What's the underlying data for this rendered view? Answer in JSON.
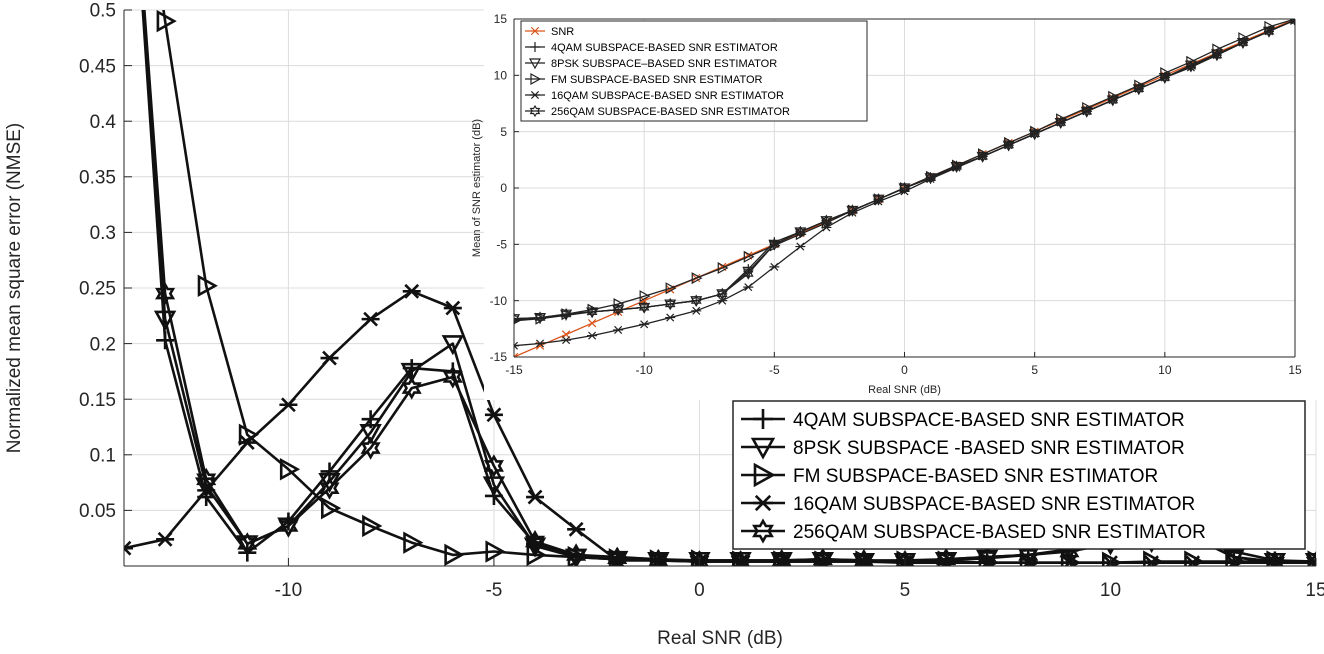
{
  "chart_data": [
    {
      "type": "line",
      "name": "main",
      "title": "",
      "xlabel": "Real SNR (dB)",
      "ylabel": "Normalized mean square error (NMSE)",
      "xlim": [
        -14,
        15
      ],
      "ylim": [
        0,
        0.5
      ],
      "xticks": [
        -10,
        -5,
        0,
        5,
        10,
        15
      ],
      "yticks": [
        0.05,
        0.1,
        0.15,
        0.2,
        0.25,
        0.3,
        0.35,
        0.4,
        0.45,
        0.5
      ],
      "xtick_labels": [
        "-10",
        "-5",
        "0",
        "5",
        "10",
        "15"
      ],
      "ytick_labels": [
        "0.05",
        "0.1",
        "0.15",
        "0.2",
        "0.25",
        "0.3",
        "0.35",
        "0.4",
        "0.45",
        "0.5"
      ],
      "grid": true,
      "legend_position": "bottom-right",
      "x": [
        -14,
        -13,
        -12,
        -11,
        -10,
        -9,
        -8,
        -7,
        -6,
        -5,
        -4,
        -3,
        -2,
        -1,
        0,
        1,
        2,
        3,
        4,
        5,
        6,
        7,
        8,
        9,
        10,
        11,
        12,
        13,
        14,
        15
      ],
      "series": [
        {
          "name": "4QAM SUBSPACE-BASED SNR ESTIMATOR",
          "marker": "plus",
          "values": [
            0.75,
            0.203,
            0.062,
            0.012,
            0.04,
            0.085,
            0.132,
            0.178,
            0.175,
            0.063,
            0.02,
            0.01,
            0.008,
            0.006,
            0.005,
            0.005,
            0.005,
            0.006,
            0.005,
            0.005,
            0.006,
            0.008,
            0.01,
            0.014,
            0.02,
            0.024,
            0.025,
            0.013,
            0.005,
            0.004
          ]
        },
        {
          "name": "8PSK SUBSPACE -BASED SNR ESTIMATOR",
          "marker": "triangle-down",
          "values": [
            0.75,
            0.222,
            0.072,
            0.02,
            0.036,
            0.076,
            0.12,
            0.175,
            0.2,
            0.073,
            0.018,
            0.008,
            0.006,
            0.005,
            0.005,
            0.005,
            0.005,
            0.005,
            0.004,
            0.004,
            0.005,
            0.007,
            0.01,
            0.015,
            0.022,
            0.026,
            0.026,
            0.008,
            0.004,
            0.004
          ]
        },
        {
          "name": "FM SUBSPACE-BASED SNR ESTIMATOR",
          "marker": "triangle-right",
          "values": [
            0.75,
            0.49,
            0.252,
            0.118,
            0.087,
            0.052,
            0.036,
            0.021,
            0.01,
            0.013,
            0.01,
            0.008,
            0.006,
            0.005,
            0.005,
            0.004,
            0.004,
            0.004,
            0.004,
            0.004,
            0.004,
            0.003,
            0.003,
            0.003,
            0.003,
            0.004,
            0.004,
            0.004,
            0.004,
            0.004
          ]
        },
        {
          "name": "16QAM SUBSPACE-BASED SNR ESTIMATOR",
          "marker": "asterisk",
          "values": [
            0.016,
            0.024,
            0.068,
            0.111,
            0.145,
            0.187,
            0.222,
            0.247,
            0.232,
            0.136,
            0.062,
            0.033,
            0.005,
            0.005,
            0.004,
            0.004,
            0.004,
            0.004,
            0.004,
            0.003,
            0.003,
            0.003,
            0.003,
            0.003,
            0.003,
            0.003,
            0.003,
            0.003,
            0.003,
            0.003
          ]
        },
        {
          "name": "256QAM SUBSPACE-BASED SNR ESTIMATOR",
          "marker": "hexagram",
          "values": [
            0.75,
            0.245,
            0.078,
            0.02,
            0.036,
            0.07,
            0.106,
            0.16,
            0.17,
            0.09,
            0.022,
            0.01,
            0.007,
            0.005,
            0.004,
            0.004,
            0.005,
            0.006,
            0.005,
            0.004,
            0.006,
            0.008,
            0.01,
            0.013,
            0.02,
            0.022,
            0.026,
            0.008,
            0.003,
            0.003
          ]
        }
      ]
    },
    {
      "type": "line",
      "name": "inset",
      "title": "",
      "xlabel": "Real SNR (dB)",
      "ylabel": "Mean of SNR estimator (dB)",
      "xlim": [
        -15,
        15
      ],
      "ylim": [
        -15,
        15
      ],
      "xticks": [
        -15,
        -10,
        -5,
        0,
        5,
        10,
        15
      ],
      "yticks": [
        -15,
        -10,
        -5,
        0,
        5,
        10,
        15
      ],
      "xtick_labels": [
        "-15",
        "-10",
        "-5",
        "0",
        "5",
        "10",
        "15"
      ],
      "ytick_labels": [
        "-15",
        "-10",
        "-5",
        "0",
        "5",
        "10",
        "15"
      ],
      "grid": true,
      "legend_position": "top-left",
      "x": [
        -15,
        -14,
        -13,
        -12,
        -11,
        -10,
        -9,
        -8,
        -7,
        -6,
        -5,
        -4,
        -3,
        -2,
        -1,
        0,
        1,
        2,
        3,
        4,
        5,
        6,
        7,
        8,
        9,
        10,
        11,
        12,
        13,
        14,
        15
      ],
      "series": [
        {
          "name": "SNR",
          "marker": "x",
          "color": "#d95319",
          "values": [
            -15,
            -14,
            -13,
            -12,
            -11,
            -10,
            -9,
            -8,
            -7,
            -6,
            -5,
            -4,
            -3,
            -2,
            -1,
            0,
            1,
            2,
            3,
            4,
            5,
            6,
            7,
            8,
            9,
            10,
            11,
            12,
            13,
            14,
            15
          ]
        },
        {
          "name": "4QAM SUBSPACE-BASED SNR ESTIMATOR",
          "marker": "plus",
          "color": "#222222",
          "values": [
            -11.7,
            -11.6,
            -11.3,
            -11.0,
            -10.8,
            -10.6,
            -10.3,
            -10.0,
            -9.4,
            -7.2,
            -4.8,
            -3.9,
            -2.9,
            -2.0,
            -1.0,
            0.0,
            0.9,
            1.9,
            2.8,
            3.8,
            4.8,
            5.8,
            6.8,
            7.8,
            8.8,
            9.8,
            10.8,
            11.8,
            12.9,
            13.9,
            14.9
          ]
        },
        {
          "name": "8PSK SUBSPACE–BASED SNR ESTIMATOR",
          "marker": "triangle-down",
          "color": "#222222",
          "values": [
            -11.6,
            -11.5,
            -11.2,
            -11.0,
            -10.8,
            -10.6,
            -10.3,
            -10.0,
            -9.4,
            -7.4,
            -5.0,
            -3.9,
            -2.9,
            -2.0,
            -1.0,
            0.0,
            0.9,
            1.9,
            2.8,
            3.8,
            4.8,
            5.8,
            6.8,
            7.8,
            8.8,
            9.8,
            10.9,
            11.9,
            12.9,
            13.9,
            14.9
          ]
        },
        {
          "name": "FM  SUBSPACE-BASED SNR ESTIMATOR",
          "marker": "triangle-right",
          "color": "#222222",
          "values": [
            -11.8,
            -11.6,
            -11.2,
            -10.8,
            -10.3,
            -9.6,
            -8.9,
            -8.0,
            -7.1,
            -6.1,
            -5.1,
            -4.1,
            -3.1,
            -2.0,
            -1.0,
            0.0,
            1.0,
            2.0,
            3.0,
            4.0,
            5.0,
            6.1,
            7.1,
            8.1,
            9.1,
            10.2,
            11.2,
            12.3,
            13.3,
            14.3,
            15.0
          ]
        },
        {
          "name": "16QAM SUBSPACE-BASED SNR ESTIMATOR",
          "marker": "asterisk",
          "color": "#222222",
          "values": [
            -14.0,
            -13.8,
            -13.5,
            -13.1,
            -12.6,
            -12.1,
            -11.5,
            -10.9,
            -10.0,
            -8.8,
            -7.0,
            -5.2,
            -3.5,
            -2.2,
            -1.2,
            -0.3,
            0.8,
            1.8,
            2.8,
            3.8,
            4.8,
            5.8,
            6.8,
            7.8,
            8.8,
            9.8,
            10.7,
            11.8,
            12.9,
            13.9,
            14.9
          ]
        },
        {
          "name": "256QAM SUBSPACE-BASED SNR ESTIMATOR",
          "marker": "hexagram",
          "color": "#222222",
          "values": [
            -11.6,
            -11.5,
            -11.2,
            -11.0,
            -10.8,
            -10.6,
            -10.3,
            -10.0,
            -9.4,
            -7.6,
            -5.0,
            -3.9,
            -2.9,
            -2.0,
            -1.0,
            0.0,
            0.9,
            1.9,
            2.8,
            3.8,
            4.8,
            5.8,
            6.8,
            7.8,
            8.8,
            9.8,
            10.8,
            11.8,
            12.9,
            13.9,
            14.9
          ]
        }
      ]
    }
  ]
}
